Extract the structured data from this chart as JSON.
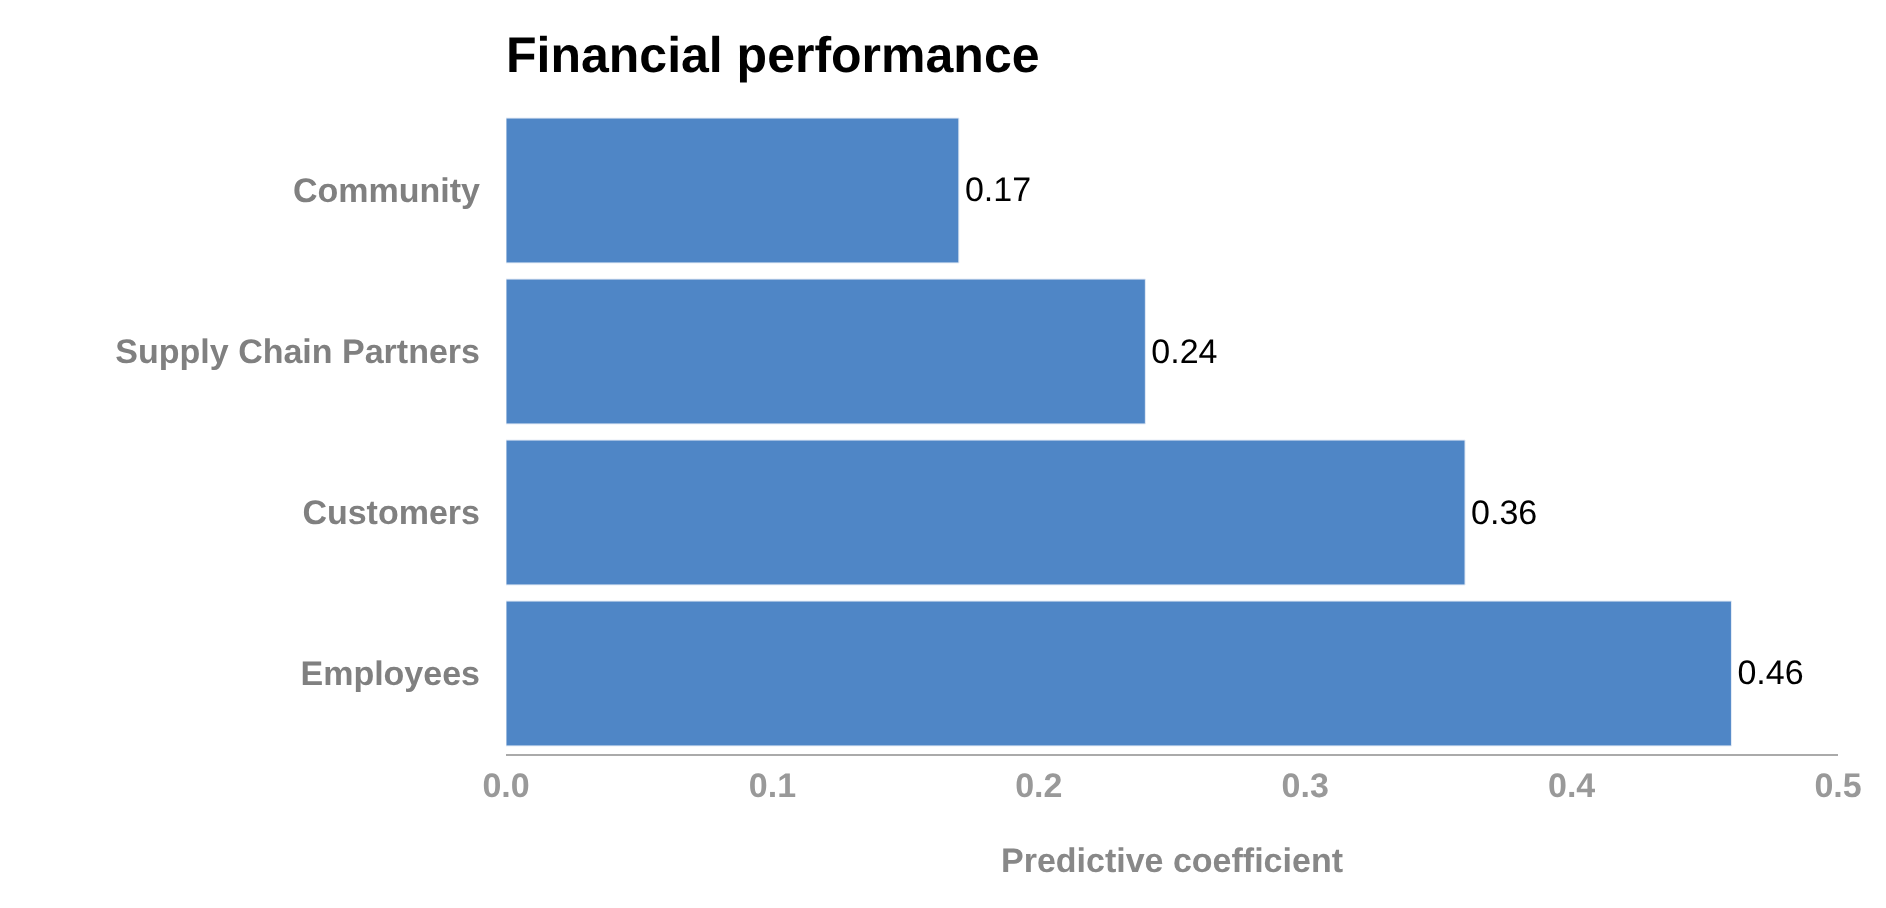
{
  "chart_data": {
    "type": "bar",
    "orientation": "horizontal",
    "title": "Financial performance",
    "xlabel": "Predictive coefficient",
    "categories": [
      "Community",
      "Supply Chain Partners",
      "Customers",
      "Employees"
    ],
    "values": [
      0.17,
      0.24,
      0.36,
      0.46
    ],
    "color": "#4f86c6",
    "xlim": [
      0,
      0.5
    ],
    "xticks": [
      {
        "value": 0,
        "label": "0.0"
      },
      0.1,
      0.2,
      0.3,
      0.4,
      0.5
    ],
    "data_labels": true
  }
}
